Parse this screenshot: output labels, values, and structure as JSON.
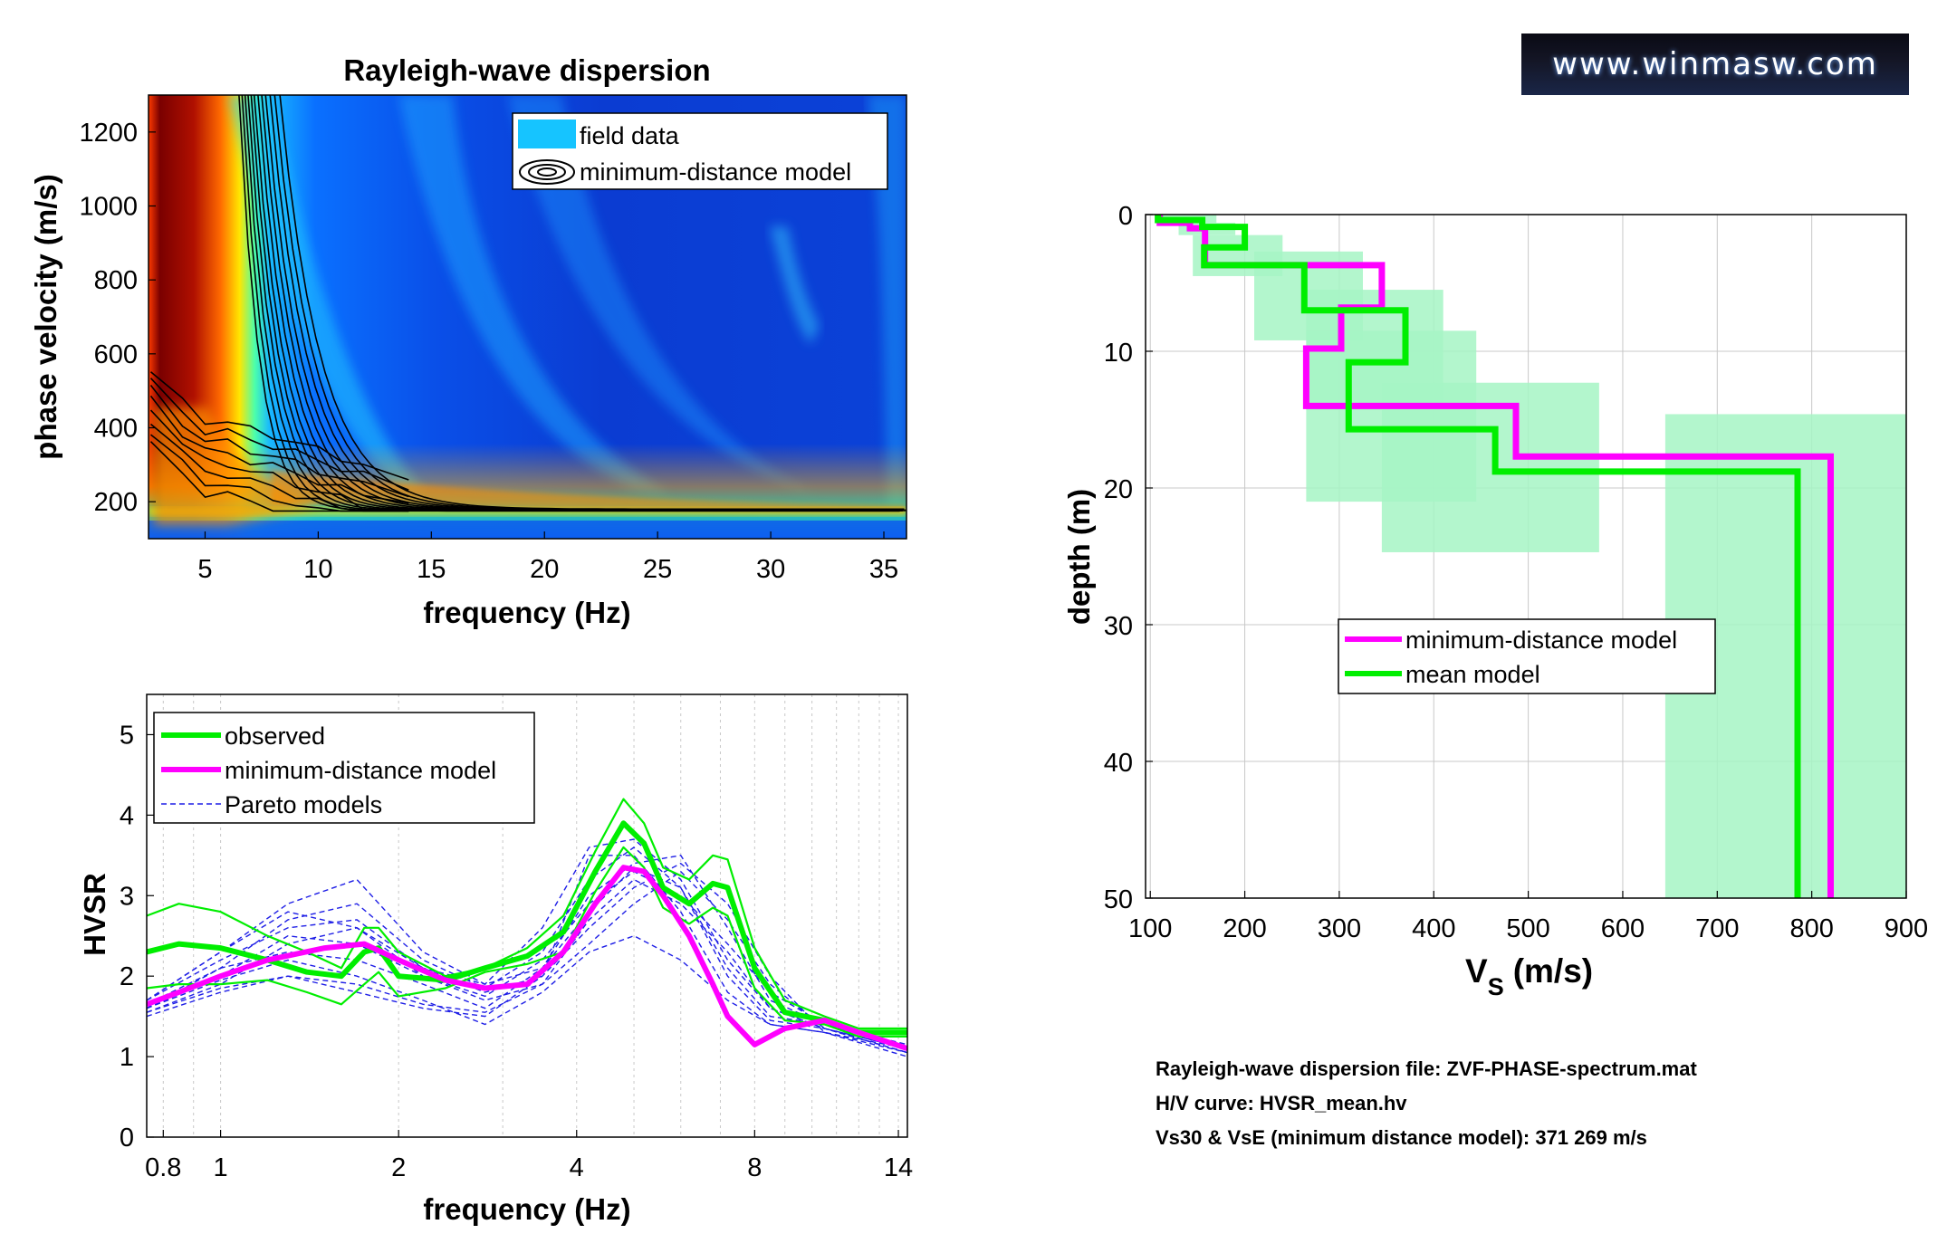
{
  "logo_text": "www.winmasw.com",
  "info_lines": {
    "line1": "Rayleigh-wave dispersion file: ZVF-PHASE-spectrum.mat",
    "line2": "H/V curve: HVSR_mean.hv",
    "line3": "Vs30 & VsE (minimum distance model): 371  269 m/s"
  },
  "colors": {
    "observed": "#00ee00",
    "model": "#ff00ff",
    "pareto": "#1e1ee6",
    "band": "#a6f5c4",
    "contour": "#000000"
  },
  "chart_data": [
    {
      "type": "heatmap",
      "title": "Rayleigh-wave dispersion",
      "xlabel": "frequency (Hz)",
      "ylabel": "phase velocity (m/s)",
      "xlim": [
        2.5,
        36
      ],
      "ylim": [
        100,
        1300
      ],
      "xticks": [
        5,
        10,
        15,
        20,
        25,
        30,
        35
      ],
      "yticks": [
        200,
        400,
        600,
        800,
        1000,
        1200
      ],
      "colormap": "jet",
      "legend": {
        "location": "top-right",
        "entries": [
          "field data",
          "minimum-distance model"
        ]
      },
      "series": [
        {
          "name": "minimum-distance model",
          "x": [
            2.6,
            4,
            5,
            6,
            7,
            8,
            9,
            10,
            11,
            12,
            14,
            16,
            18,
            20,
            22,
            25,
            28,
            30,
            33,
            36
          ],
          "y": [
            560,
            470,
            420,
            415,
            395,
            380,
            360,
            340,
            320,
            300,
            270,
            250,
            230,
            210,
            200,
            190,
            185,
            182,
            180,
            178
          ]
        }
      ]
    },
    {
      "type": "line",
      "xlabel": "frequency (Hz)",
      "ylabel": "HVSR",
      "xscale": "log",
      "xlim": [
        0.75,
        14.5
      ],
      "ylim": [
        0,
        5.5
      ],
      "xticks": [
        0.8,
        1,
        2,
        4,
        8,
        14
      ],
      "yticks": [
        0,
        1,
        2,
        3,
        4,
        5
      ],
      "legend": {
        "location": "top-left",
        "entries": [
          "observed",
          "minimum-distance model",
          "Pareto models"
        ]
      },
      "series": [
        {
          "name": "observed",
          "style": "thick",
          "x": [
            0.75,
            0.85,
            1.0,
            1.2,
            1.4,
            1.6,
            1.75,
            1.85,
            2.0,
            2.4,
            2.8,
            3.3,
            3.8,
            4.3,
            4.8,
            5.2,
            5.6,
            6.2,
            6.8,
            7.2,
            8.0,
            9.0,
            10.5,
            12.0,
            14.5
          ],
          "y": [
            2.3,
            2.4,
            2.35,
            2.2,
            2.05,
            2.0,
            2.3,
            2.35,
            2.0,
            1.95,
            2.1,
            2.25,
            2.55,
            3.3,
            3.9,
            3.65,
            3.1,
            2.9,
            3.15,
            3.1,
            2.1,
            1.55,
            1.45,
            1.3,
            1.3
          ]
        },
        {
          "name": "observed +sd",
          "style": "thin",
          "x": [
            0.75,
            0.85,
            1.0,
            1.2,
            1.4,
            1.6,
            1.75,
            1.85,
            2.0,
            2.4,
            2.8,
            3.3,
            3.8,
            4.3,
            4.8,
            5.2,
            5.6,
            6.2,
            6.8,
            7.2,
            8.0,
            9.0,
            10.5,
            12.0,
            14.5
          ],
          "y": [
            2.75,
            2.9,
            2.8,
            2.5,
            2.3,
            2.1,
            2.6,
            2.6,
            2.3,
            2.0,
            2.1,
            2.35,
            2.75,
            3.55,
            4.2,
            3.9,
            3.35,
            3.2,
            3.5,
            3.45,
            2.35,
            1.7,
            1.5,
            1.35,
            1.35
          ]
        },
        {
          "name": "observed -sd",
          "style": "thin",
          "x": [
            0.75,
            0.85,
            1.0,
            1.2,
            1.4,
            1.6,
            1.75,
            1.85,
            2.0,
            2.4,
            2.8,
            3.3,
            3.8,
            4.3,
            4.8,
            5.2,
            5.6,
            6.2,
            6.8,
            7.2,
            8.0,
            9.0,
            10.5,
            12.0,
            14.5
          ],
          "y": [
            1.85,
            1.9,
            1.9,
            1.95,
            1.8,
            1.65,
            1.9,
            2.05,
            1.75,
            1.85,
            2.05,
            2.15,
            2.3,
            3.05,
            3.6,
            3.35,
            2.85,
            2.65,
            2.85,
            2.75,
            1.85,
            1.45,
            1.4,
            1.25,
            1.25
          ]
        },
        {
          "name": "minimum-distance model",
          "style": "thick",
          "x": [
            0.75,
            0.85,
            1.0,
            1.2,
            1.5,
            1.75,
            2.0,
            2.4,
            2.8,
            3.3,
            3.8,
            4.3,
            4.8,
            5.2,
            5.6,
            6.2,
            6.8,
            7.2,
            8.0,
            9.0,
            10.5,
            12.0,
            14.5
          ],
          "y": [
            1.65,
            1.8,
            2.0,
            2.2,
            2.35,
            2.4,
            2.2,
            1.95,
            1.85,
            1.9,
            2.3,
            2.9,
            3.35,
            3.3,
            3.0,
            2.5,
            1.9,
            1.5,
            1.15,
            1.35,
            1.45,
            1.3,
            1.1
          ]
        }
      ],
      "pareto": [
        {
          "x": [
            0.75,
            1.0,
            1.3,
            1.7,
            2.2,
            2.8,
            3.5,
            4.2,
            5.0,
            6.0,
            7.2,
            8.5,
            10.5,
            14.5
          ],
          "y": [
            1.7,
            2.3,
            2.9,
            3.2,
            2.3,
            1.9,
            2.1,
            2.8,
            3.35,
            3.1,
            2.1,
            1.5,
            1.4,
            1.1
          ]
        },
        {
          "x": [
            0.75,
            1.0,
            1.3,
            1.7,
            2.2,
            2.8,
            3.5,
            4.2,
            5.0,
            6.0,
            7.2,
            8.5,
            10.5,
            14.5
          ],
          "y": [
            1.6,
            2.1,
            2.7,
            2.9,
            2.2,
            1.85,
            2.3,
            3.2,
            3.6,
            3.1,
            2.0,
            1.45,
            1.35,
            1.05
          ]
        },
        {
          "x": [
            0.75,
            1.0,
            1.3,
            1.7,
            2.2,
            2.8,
            3.5,
            4.2,
            5.0,
            6.0,
            7.2,
            8.5,
            10.5,
            14.5
          ],
          "y": [
            1.55,
            1.9,
            2.4,
            2.6,
            2.1,
            1.8,
            2.0,
            3.5,
            3.5,
            2.8,
            1.8,
            1.4,
            1.3,
            1.0
          ]
        },
        {
          "x": [
            0.75,
            1.0,
            1.3,
            1.7,
            2.2,
            2.8,
            3.5,
            4.2,
            5.0,
            6.0,
            7.2,
            8.5,
            10.5,
            14.5
          ],
          "y": [
            1.5,
            1.8,
            2.0,
            1.8,
            1.6,
            1.5,
            2.0,
            2.6,
            3.1,
            3.4,
            2.9,
            2.0,
            1.3,
            1.1
          ]
        },
        {
          "x": [
            0.75,
            1.0,
            1.3,
            1.7,
            2.2,
            2.8,
            3.5,
            4.2,
            5.0,
            6.0,
            7.2,
            8.5,
            10.5,
            14.5
          ],
          "y": [
            1.6,
            2.0,
            2.5,
            2.4,
            2.0,
            1.7,
            1.9,
            2.4,
            2.9,
            3.3,
            2.7,
            1.9,
            1.35,
            1.1
          ]
        },
        {
          "x": [
            0.75,
            1.0,
            1.3,
            1.7,
            2.2,
            2.8,
            3.5,
            4.2,
            5.0,
            6.0,
            7.2,
            8.5,
            10.5,
            14.5
          ],
          "y": [
            1.6,
            1.95,
            2.2,
            2.0,
            1.7,
            1.4,
            1.8,
            2.3,
            2.5,
            2.2,
            1.7,
            1.4,
            1.3,
            1.05
          ]
        },
        {
          "x": [
            0.75,
            1.0,
            1.3,
            1.7,
            2.2,
            2.8,
            3.5,
            4.2,
            5.0,
            6.0,
            7.2,
            8.5,
            10.5,
            14.5
          ],
          "y": [
            1.7,
            2.2,
            2.6,
            2.7,
            2.1,
            1.9,
            2.6,
            3.6,
            3.7,
            3.2,
            2.2,
            1.6,
            1.35,
            1.1
          ]
        },
        {
          "x": [
            0.75,
            1.0,
            1.3,
            1.7,
            2.2,
            2.8,
            3.5,
            4.2,
            5.0,
            6.0,
            7.2,
            8.5,
            10.5,
            14.5
          ],
          "y": [
            1.65,
            2.1,
            2.3,
            2.2,
            1.9,
            1.6,
            2.1,
            3.0,
            3.4,
            3.5,
            2.6,
            1.7,
            1.4,
            1.1
          ]
        },
        {
          "x": [
            0.75,
            1.0,
            1.3,
            1.7,
            2.2,
            2.8,
            3.5,
            4.2,
            5.0,
            6.0,
            7.2,
            8.5,
            10.5,
            14.5
          ],
          "y": [
            1.55,
            1.85,
            2.0,
            1.9,
            1.65,
            1.55,
            1.9,
            2.7,
            3.2,
            2.9,
            2.3,
            1.6,
            1.35,
            1.05
          ]
        },
        {
          "x": [
            0.75,
            1.0,
            1.3,
            1.7,
            2.2,
            2.8,
            3.5,
            4.2,
            5.0,
            6.0,
            7.2,
            8.5,
            10.5,
            14.5
          ],
          "y": [
            1.7,
            2.3,
            2.8,
            2.6,
            2.0,
            1.75,
            2.2,
            2.9,
            3.3,
            3.0,
            2.4,
            1.8,
            1.4,
            1.15
          ]
        }
      ]
    },
    {
      "type": "line",
      "xlabel": "V",
      "xlabel_sub": "S",
      "xlabel_unit": "(m/s)",
      "ylabel": "depth (m)",
      "xlim": [
        95,
        900
      ],
      "ylim": [
        0,
        50
      ],
      "ydir": "reverse",
      "xticks": [
        100,
        200,
        300,
        400,
        500,
        600,
        700,
        800,
        900
      ],
      "yticks": [
        0,
        10,
        20,
        30,
        40,
        50
      ],
      "legend": {
        "location": "center",
        "entries": [
          "minimum-distance model",
          "mean model"
        ]
      },
      "bands": [
        {
          "x": [
            110,
            170
          ],
          "y": [
            0,
            0.6
          ]
        },
        {
          "x": [
            130,
            190
          ],
          "y": [
            0.6,
            1.5
          ]
        },
        {
          "x": [
            145,
            240
          ],
          "y": [
            1.5,
            4.5
          ]
        },
        {
          "x": [
            210,
            325
          ],
          "y": [
            2.7,
            9.2
          ]
        },
        {
          "x": [
            265,
            410
          ],
          "y": [
            5.5,
            14.3
          ]
        },
        {
          "x": [
            265,
            445
          ],
          "y": [
            8.5,
            21.0
          ]
        },
        {
          "x": [
            345,
            575
          ],
          "y": [
            12.3,
            24.7
          ]
        },
        {
          "x": [
            645,
            900
          ],
          "y": [
            14.6,
            50
          ]
        }
      ],
      "series": [
        {
          "name": "minimum-distance model",
          "profile": [
            {
              "vs": 110,
              "top": 0,
              "bottom": 0.6
            },
            {
              "vs": 142,
              "top": 0.6,
              "bottom": 1.0
            },
            {
              "vs": 158,
              "top": 1.0,
              "bottom": 3.7
            },
            {
              "vs": 345,
              "top": 3.7,
              "bottom": 6.8
            },
            {
              "vs": 302,
              "top": 6.8,
              "bottom": 9.8
            },
            {
              "vs": 265,
              "top": 9.8,
              "bottom": 14.0
            },
            {
              "vs": 487,
              "top": 14.0,
              "bottom": 17.7
            },
            {
              "vs": 820,
              "top": 17.7,
              "bottom": 50
            }
          ]
        },
        {
          "name": "mean model",
          "profile": [
            {
              "vs": 108,
              "top": 0,
              "bottom": 0.4
            },
            {
              "vs": 155,
              "top": 0.4,
              "bottom": 0.9
            },
            {
              "vs": 200,
              "top": 0.9,
              "bottom": 2.4
            },
            {
              "vs": 157,
              "top": 2.4,
              "bottom": 3.7
            },
            {
              "vs": 263,
              "top": 3.7,
              "bottom": 7.0
            },
            {
              "vs": 370,
              "top": 7.0,
              "bottom": 10.8
            },
            {
              "vs": 310,
              "top": 10.8,
              "bottom": 15.7
            },
            {
              "vs": 465,
              "top": 15.7,
              "bottom": 18.8
            },
            {
              "vs": 785,
              "top": 18.8,
              "bottom": 50
            }
          ]
        }
      ]
    }
  ]
}
